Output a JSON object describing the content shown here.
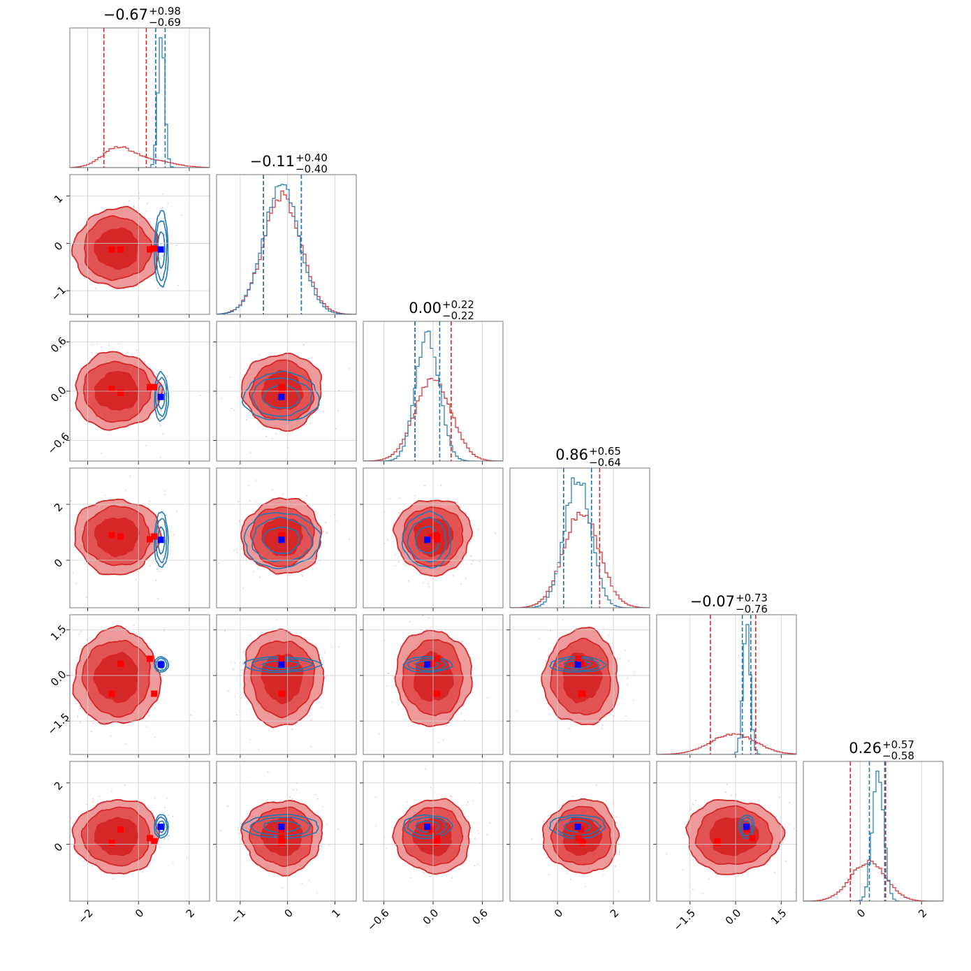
{
  "chart_data": {
    "type": "corner",
    "n_params": 6,
    "colors": {
      "red": "#d62728",
      "red_light": "#ee9a9b",
      "red_mid": "#e35354",
      "blue": "#1f77b4",
      "marker_blue": "#0000ff",
      "marker_red": "#ff0000",
      "grid": "#cccccc",
      "frame": "#777777"
    },
    "params": [
      {
        "range": [
          -2.7,
          2.8
        ],
        "ticks": [
          -2,
          0,
          2
        ],
        "tick_labels": [
          "−2",
          "0",
          "2"
        ],
        "title": {
          "main": "−0.67",
          "plus": "+0.98",
          "minus": "−0.69"
        },
        "red": {
          "mean": -0.85,
          "sd": 0.8,
          "q": [
            -1.36,
            0.31
          ]
        },
        "blue": {
          "mean": 0.9,
          "sd": 0.13,
          "q": [
            0.68,
            1.05
          ]
        }
      },
      {
        "range": [
          -1.5,
          1.45
        ],
        "ticks": [
          -1,
          0,
          1
        ],
        "tick_labels": [
          "−1",
          "0",
          "1"
        ],
        "title": {
          "main": "−0.11",
          "plus": "+0.40",
          "minus": "−0.40"
        },
        "red": {
          "mean": -0.11,
          "sd": 0.4,
          "q": [
            -0.51,
            0.29
          ]
        },
        "blue": {
          "mean": -0.13,
          "sd": 0.38,
          "q": [
            -0.51,
            0.29
          ]
        }
      },
      {
        "range": [
          -0.85,
          0.85
        ],
        "ticks": [
          -0.6,
          0.0,
          0.6
        ],
        "tick_labels": [
          "−0.6",
          "0.0",
          "0.6"
        ],
        "title": {
          "main": "0.00",
          "plus": "+0.22",
          "minus": "−0.22"
        },
        "red": {
          "mean": 0.0,
          "sd": 0.22,
          "q": [
            -0.22,
            0.22
          ]
        },
        "blue": {
          "mean": -0.07,
          "sd": 0.14,
          "q": [
            -0.22,
            0.08
          ]
        }
      },
      {
        "range": [
          -1.7,
          3.3
        ],
        "ticks": [
          0,
          2
        ],
        "tick_labels": [
          "0",
          "2"
        ],
        "title": {
          "main": "0.86",
          "plus": "+0.65",
          "minus": "−0.64"
        },
        "red": {
          "mean": 0.86,
          "sd": 0.64,
          "q": [
            0.22,
            1.51
          ]
        },
        "blue": {
          "mean": 0.72,
          "sd": 0.47,
          "q": [
            0.22,
            1.22
          ]
        }
      },
      {
        "range": [
          -2.6,
          2.0
        ],
        "ticks": [
          -1.5,
          0.0,
          1.5
        ],
        "tick_labels": [
          "−1.5",
          "0.0",
          "1.5"
        ],
        "title": {
          "main": "−0.07",
          "plus": "+0.73",
          "minus": "−0.76"
        },
        "red": {
          "mean": -0.07,
          "sd": 0.75,
          "q": [
            -0.83,
            0.66
          ]
        },
        "blue": {
          "mean": 0.36,
          "sd": 0.12,
          "q": [
            0.22,
            0.5
          ]
        }
      },
      {
        "range": [
          -1.85,
          2.7
        ],
        "ticks": [
          0,
          2
        ],
        "tick_labels": [
          "0",
          "2"
        ],
        "title": {
          "main": "0.26",
          "plus": "+0.57",
          "minus": "−0.58"
        },
        "red": {
          "mean": 0.26,
          "sd": 0.57,
          "q": [
            -0.32,
            0.83
          ]
        },
        "blue": {
          "mean": 0.58,
          "sd": 0.18,
          "q": [
            0.3,
            0.8
          ]
        }
      }
    ],
    "blue_marker": [
      0.88,
      -0.13,
      -0.07,
      0.73,
      0.36,
      0.57
    ],
    "red_markers": [
      [
        -1.05,
        -0.13,
        0.03,
        0.9,
        -0.6,
        0.05
      ],
      [
        -0.7,
        -0.13,
        -0.02,
        0.85,
        0.38,
        0.48
      ],
      [
        0.45,
        -0.13,
        0.05,
        0.75,
        0.55,
        0.2
      ],
      [
        0.62,
        -0.11,
        0.05,
        0.85,
        -0.6,
        0.1
      ]
    ]
  }
}
